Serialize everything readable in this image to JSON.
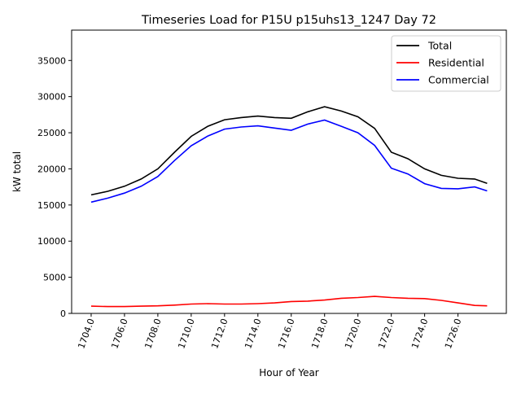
{
  "chart_data": {
    "type": "line",
    "title": "Timeseries Load for P15U p15uhs13_1247  Day 72",
    "xlabel": "Hour of Year",
    "ylabel": "kW total",
    "xlim": [
      1702.83,
      1728.9
    ],
    "ylim": [
      0,
      39200
    ],
    "xticks": [
      1704,
      1706,
      1708,
      1710,
      1712,
      1714,
      1716,
      1718,
      1720,
      1722,
      1724,
      1726
    ],
    "xtick_labels": [
      "1704.0",
      "1706.0",
      "1708.0",
      "1710.0",
      "1712.0",
      "1714.0",
      "1716.0",
      "1718.0",
      "1720.0",
      "1722.0",
      "1724.0",
      "1726.0"
    ],
    "yticks": [
      0,
      5000,
      10000,
      15000,
      20000,
      25000,
      30000,
      35000
    ],
    "ytick_labels": [
      "0",
      "5000",
      "10000",
      "15000",
      "20000",
      "25000",
      "30000",
      "35000"
    ],
    "grid": false,
    "legend_position": "top-right",
    "x": [
      1704,
      1705,
      1706,
      1707,
      1708,
      1709,
      1710,
      1711,
      1712,
      1713,
      1714,
      1715,
      1716,
      1717,
      1718,
      1719,
      1720,
      1721,
      1722,
      1723,
      1724,
      1725,
      1726,
      1727,
      1727.75
    ],
    "series": [
      {
        "name": "Total",
        "color": "#000000",
        "values": [
          16400,
          16900,
          17600,
          18600,
          20000,
          22300,
          24500,
          25900,
          26800,
          27100,
          27300,
          27100,
          27000,
          27900,
          28600,
          28000,
          27200,
          25600,
          22300,
          21400,
          20000,
          19100,
          18700,
          18600,
          18000
        ]
      },
      {
        "name": "Residential",
        "color": "#ff0000",
        "values": [
          1000,
          950,
          950,
          1000,
          1050,
          1150,
          1300,
          1350,
          1300,
          1300,
          1350,
          1450,
          1650,
          1700,
          1850,
          2100,
          2200,
          2350,
          2200,
          2100,
          2050,
          1800,
          1450,
          1100,
          1050
        ]
      },
      {
        "name": "Commercial",
        "color": "#0000ff",
        "values": [
          15400,
          15950,
          16650,
          17600,
          18950,
          21150,
          23200,
          24550,
          25500,
          25800,
          25950,
          25650,
          25350,
          26200,
          26750,
          25900,
          25000,
          23250,
          20100,
          19300,
          17950,
          17300,
          17250,
          17500,
          16950
        ]
      }
    ]
  }
}
